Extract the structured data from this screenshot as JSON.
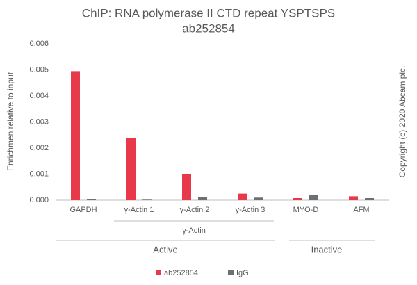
{
  "chart_data": {
    "type": "bar",
    "title": [
      "ChIP: RNA polymerase II CTD repeat YSPTSPS",
      "ab252854"
    ],
    "y_label": "Enrichmen relative to input",
    "side_note": "Copyright (c) 2020 Abcam plc.",
    "categories": [
      "GAPDH",
      "γ-Actin 1",
      "γ-Actin 2",
      "γ-Actin 3",
      "MYO-D",
      "AFM"
    ],
    "series": [
      {
        "name": "ab252854",
        "color": "#e8394a",
        "values": [
          0.00495,
          0.0024,
          0.001,
          0.00025,
          8e-05,
          0.00015
        ]
      },
      {
        "name": "IgG",
        "color": "#6b7075",
        "values": [
          5e-05,
          2e-05,
          0.00013,
          0.0001,
          0.0002,
          8e-05
        ]
      }
    ],
    "groups": {
      "subgroup": "γ-Actin",
      "main": [
        "Active",
        "Inactive"
      ]
    },
    "ylim": [
      0,
      0.006
    ],
    "yticks": [
      {
        "value": 0,
        "label": "0.000"
      },
      {
        "value": 0.001,
        "label": "0.001"
      },
      {
        "value": 0.002,
        "label": "0.002"
      },
      {
        "value": 0.003,
        "label": "0.003"
      },
      {
        "value": 0.004,
        "label": "0.004"
      },
      {
        "value": 0.005,
        "label": "0.005"
      },
      {
        "value": 0.006,
        "label": "0.006"
      }
    ],
    "grid": false
  }
}
